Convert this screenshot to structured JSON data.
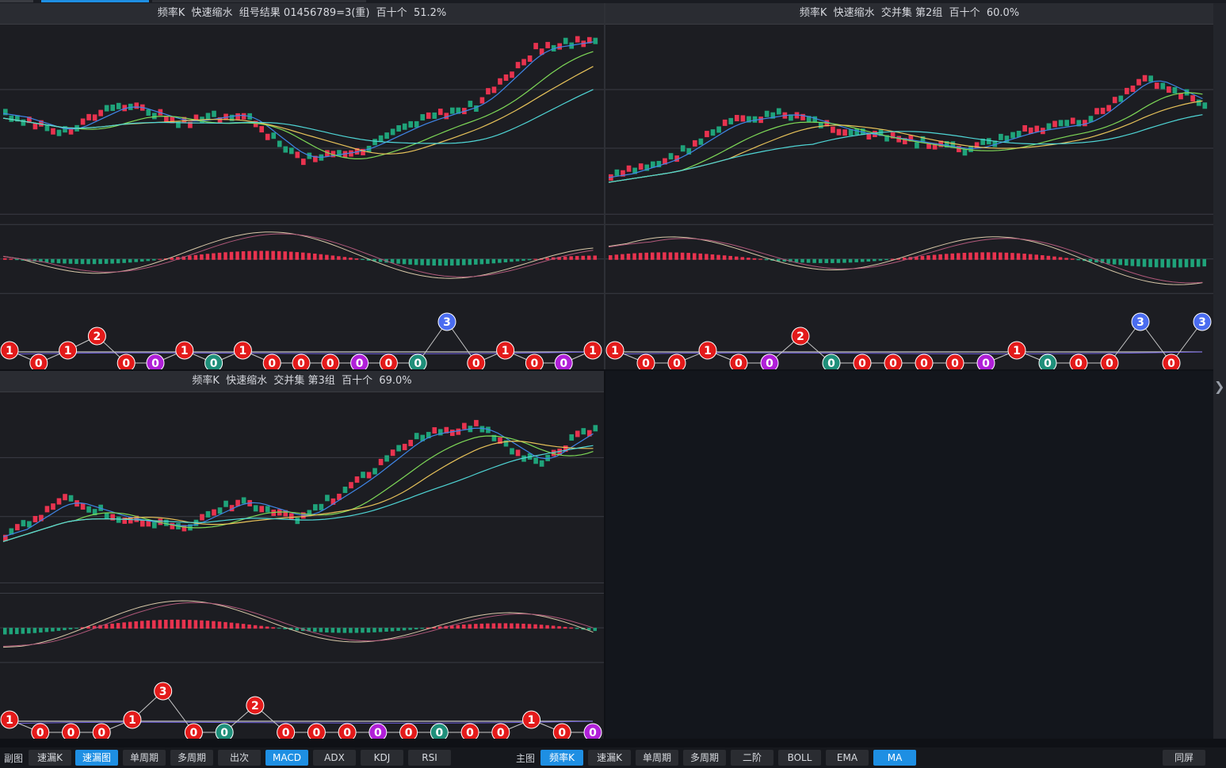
{
  "panels": [
    {
      "title": "频率K  快速缩水  组号结果 01456789=3(重)  百十个  51.2%",
      "balls": [
        "1",
        "0",
        "1",
        "2",
        "0",
        "0",
        "1",
        "0",
        "1",
        "0",
        "0",
        "0",
        "0",
        "0",
        "0",
        "3",
        "0",
        "1",
        "0",
        "0",
        "1"
      ]
    },
    {
      "title": "频率K  快速缩水  交并集 第2组  百十个  60.0%",
      "balls": [
        "1",
        "0",
        "0",
        "1",
        "0",
        "0",
        "2",
        "0",
        "0",
        "0",
        "0",
        "0",
        "0",
        "1",
        "0",
        "0",
        "0",
        "3",
        "0",
        "3"
      ]
    },
    {
      "title": "频率K  快速缩水  交并集 第3组  百十个  69.0%",
      "balls": [
        "1",
        "0",
        "0",
        "0",
        "1",
        "3",
        "0",
        "0",
        "2",
        "0",
        "0",
        "0",
        "0",
        "0",
        "0",
        "0",
        "0",
        "1",
        "0",
        "0"
      ]
    }
  ],
  "toolbar": {
    "sub_label": "副图",
    "sub_buttons": [
      {
        "label": "速漏K",
        "active": false
      },
      {
        "label": "速漏图",
        "active": true
      },
      {
        "label": "单周期",
        "active": false
      },
      {
        "label": "多周期",
        "active": false
      },
      {
        "label": "出次",
        "active": false
      },
      {
        "label": "MACD",
        "active": true
      },
      {
        "label": "ADX",
        "active": false
      },
      {
        "label": "KDJ",
        "active": false
      },
      {
        "label": "RSI",
        "active": false
      }
    ],
    "main_label": "主图",
    "main_buttons": [
      {
        "label": "频率K",
        "active": true
      },
      {
        "label": "速漏K",
        "active": false
      },
      {
        "label": "单周期",
        "active": false
      },
      {
        "label": "多周期",
        "active": false
      },
      {
        "label": "二阶",
        "active": false
      },
      {
        "label": "BOLL",
        "active": false
      },
      {
        "label": "EMA",
        "active": false
      },
      {
        "label": "MA",
        "active": true
      }
    ],
    "fullscreen_label": "同屏"
  },
  "colors": {
    "up": "#e8334f",
    "down": "#1fa37a",
    "ma_blue": "#3f86e8",
    "ma_green": "#7ed957",
    "ma_yellow": "#e8c35a",
    "ma_cyan": "#4fd6d6",
    "ball_red": "#e31a1a",
    "ball_blue": "#4a6cf0",
    "ball_purple": "#b020d8",
    "ball_teal": "#1f8f7a"
  }
}
